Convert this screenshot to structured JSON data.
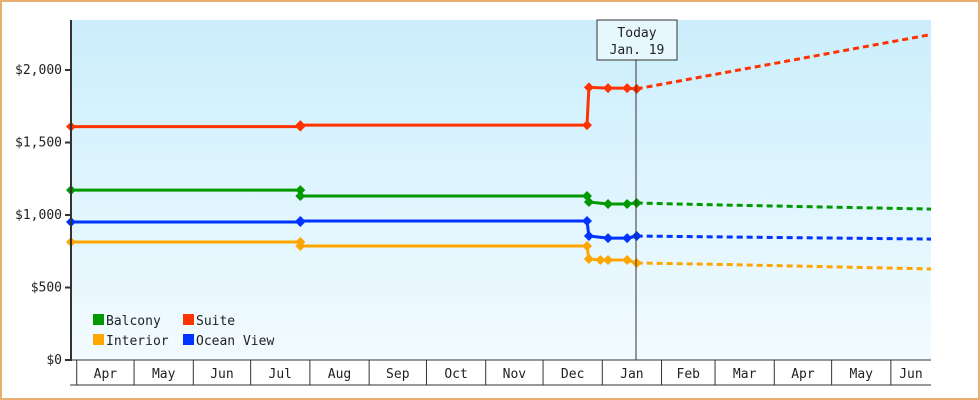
{
  "chart_data": {
    "type": "line",
    "ylim": [
      0,
      2345
    ],
    "xlim": [
      "Mar 29",
      "Jun 22"
    ],
    "y_ticks": [
      {
        "value": 0,
        "label": "$0"
      },
      {
        "value": 500,
        "label": "$500"
      },
      {
        "value": 1000,
        "label": "$1,000"
      },
      {
        "value": 1500,
        "label": "$1,500"
      },
      {
        "value": 2000,
        "label": "$2,000"
      }
    ],
    "x_months": [
      "Apr",
      "May",
      "Jun",
      "Jul",
      "Aug",
      "Sep",
      "Oct",
      "Nov",
      "Dec",
      "Jan",
      "Feb",
      "Mar",
      "Apr",
      "May",
      "Jun"
    ],
    "grid": false,
    "background_gradient": [
      "#cbeefc",
      "#f2fbff"
    ],
    "today_marker": {
      "line1": "Today",
      "line2": "Jan. 19",
      "date": "Jan 19"
    },
    "legend_position": "bottom-left",
    "series": [
      {
        "name": "Suite",
        "color": "#ff3300",
        "history": [
          [
            "Mar 29",
            1610
          ],
          [
            "Jul 27",
            1610
          ],
          [
            "Jul 27",
            1620
          ],
          [
            "Dec 24",
            1620
          ],
          [
            "Dec 25",
            1880
          ],
          [
            "Jan 4",
            1875
          ],
          [
            "Jan 14",
            1875
          ],
          [
            "Jan 19",
            1870
          ]
        ],
        "forecast": [
          [
            "Jan 19",
            1870
          ],
          [
            "Jun 22",
            2245
          ]
        ]
      },
      {
        "name": "Balcony",
        "color": "#009900",
        "history": [
          [
            "Mar 29",
            1172
          ],
          [
            "Jul 27",
            1172
          ],
          [
            "Jul 27",
            1131
          ],
          [
            "Dec 24",
            1131
          ],
          [
            "Dec 25",
            1090
          ],
          [
            "Jan 4",
            1076
          ],
          [
            "Jan 14",
            1076
          ],
          [
            "Jan 19",
            1083
          ]
        ],
        "forecast": [
          [
            "Jan 19",
            1083
          ],
          [
            "Mar 1",
            1070
          ],
          [
            "Jun 22",
            1041
          ]
        ]
      },
      {
        "name": "Ocean View",
        "color": "#0033ff",
        "history": [
          [
            "Mar 29",
            952
          ],
          [
            "Jul 27",
            952
          ],
          [
            "Jul 27",
            959
          ],
          [
            "Dec 24",
            959
          ],
          [
            "Dec 25",
            855
          ],
          [
            "Jan 4",
            841
          ],
          [
            "Jan 14",
            841
          ],
          [
            "Jan 19",
            855
          ]
        ],
        "forecast": [
          [
            "Jan 19",
            855
          ],
          [
            "Jun 22",
            834
          ]
        ]
      },
      {
        "name": "Interior",
        "color": "#ffa500",
        "history": [
          [
            "Mar 29",
            814
          ],
          [
            "Jul 27",
            814
          ],
          [
            "Jul 27",
            786
          ],
          [
            "Dec 24",
            786
          ],
          [
            "Dec 25",
            697
          ],
          [
            "Dec 31",
            690
          ],
          [
            "Jan 4",
            690
          ],
          [
            "Jan 14",
            690
          ],
          [
            "Jan 19",
            669
          ]
        ],
        "forecast": [
          [
            "Jan 19",
            669
          ],
          [
            "Mar 1",
            660
          ],
          [
            "Jun 22",
            628
          ]
        ]
      }
    ],
    "legend": [
      {
        "name": "Balcony",
        "color": "#009900"
      },
      {
        "name": "Suite",
        "color": "#ff3300"
      },
      {
        "name": "Interior",
        "color": "#ffa500"
      },
      {
        "name": "Ocean View",
        "color": "#0033ff"
      }
    ]
  }
}
